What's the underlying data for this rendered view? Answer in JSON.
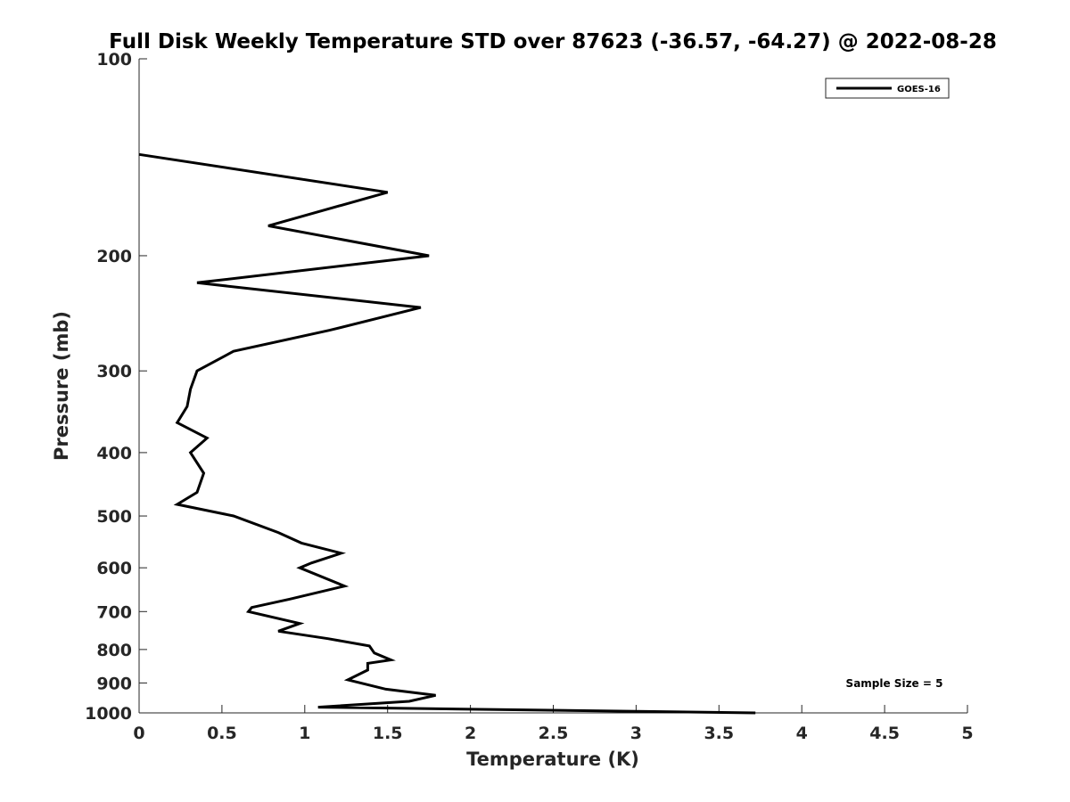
{
  "chart_data": {
    "type": "line",
    "title": "Full Disk Weekly Temperature STD over 87623 (-36.57, -64.27) @ 2022-08-28",
    "xlabel": "Temperature (K)",
    "ylabel": "Pressure (mb)",
    "xlim": [
      0,
      5
    ],
    "ylim": [
      100,
      1000
    ],
    "y_scale": "log",
    "y_reversed": true,
    "x_ticks": [
      0,
      0.5,
      1,
      1.5,
      2,
      2.5,
      3,
      3.5,
      4,
      4.5,
      5
    ],
    "x_tick_labels": [
      "0",
      "0.5",
      "1",
      "1.5",
      "2",
      "2.5",
      "3",
      "3.5",
      "4",
      "4.5",
      "5"
    ],
    "y_ticks": [
      100,
      200,
      300,
      400,
      500,
      600,
      700,
      800,
      900,
      1000
    ],
    "y_tick_labels": [
      "100",
      "200",
      "300",
      "400",
      "500",
      "600",
      "700",
      "800",
      "900",
      "1000"
    ],
    "grid": false,
    "legend_position": "top-right",
    "annotation": "Sample Size = 5",
    "series": [
      {
        "name": "GOES-16",
        "color": "#000000",
        "points": [
          [
            0.0,
            140
          ],
          [
            1.5,
            160
          ],
          [
            0.78,
            180
          ],
          [
            1.75,
            200
          ],
          [
            0.35,
            220
          ],
          [
            1.7,
            240
          ],
          [
            1.15,
            260
          ],
          [
            0.57,
            280
          ],
          [
            0.35,
            300
          ],
          [
            0.31,
            320
          ],
          [
            0.29,
            340
          ],
          [
            0.23,
            360
          ],
          [
            0.41,
            380
          ],
          [
            0.31,
            400
          ],
          [
            0.39,
            430
          ],
          [
            0.35,
            460
          ],
          [
            0.23,
            480
          ],
          [
            0.57,
            500
          ],
          [
            0.84,
            530
          ],
          [
            0.98,
            550
          ],
          [
            1.22,
            570
          ],
          [
            1.04,
            590
          ],
          [
            0.97,
            600
          ],
          [
            1.24,
            640
          ],
          [
            0.91,
            670
          ],
          [
            0.68,
            690
          ],
          [
            0.66,
            700
          ],
          [
            0.97,
            730
          ],
          [
            0.84,
            750
          ],
          [
            1.14,
            770
          ],
          [
            1.39,
            790
          ],
          [
            1.42,
            810
          ],
          [
            1.52,
            830
          ],
          [
            1.38,
            840
          ],
          [
            1.38,
            860
          ],
          [
            1.26,
            890
          ],
          [
            1.49,
            920
          ],
          [
            1.79,
            940
          ],
          [
            1.63,
            960
          ],
          [
            1.08,
            980
          ],
          [
            3.72,
            1000
          ]
        ]
      }
    ]
  }
}
